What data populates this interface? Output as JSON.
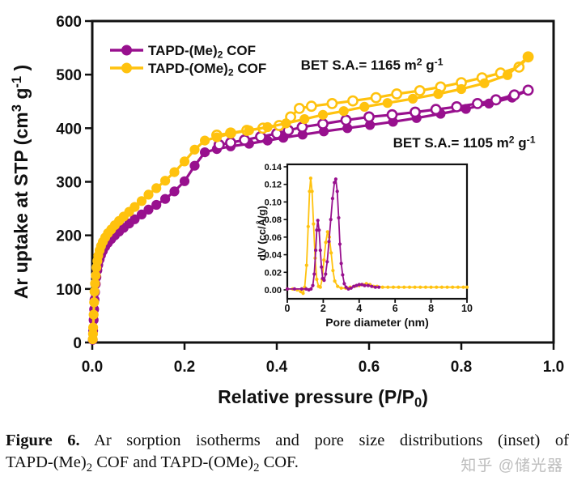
{
  "watermark": {
    "text": "知乎 @储光器"
  },
  "caption": {
    "label": "Figure 6.",
    "line1_rest": " Ar sorption isotherms and pore size distributions (inset) of",
    "line2_parts": [
      {
        "t": "TAPD-(Me)"
      },
      {
        "t": "2",
        "sub": true
      },
      {
        "t": " COF and TAPD-(OMe)"
      },
      {
        "t": "2",
        "sub": true
      },
      {
        "t": " COF."
      }
    ],
    "full_text": "Figure 6. Ar sorption isotherms and pore size distributions (inset) of TAPD-(Me)2 COF and TAPD-(OMe)2 COF."
  },
  "colors": {
    "me": "#98108E",
    "ome": "#FFC20E",
    "frame": "#111111",
    "text": "#111111",
    "watermark": "#bdbdbd"
  },
  "chart_data": [
    {
      "type": "scatter-line",
      "title": "Ar sorption isotherms",
      "xlabel": "Relative pressure (P/P0)",
      "xlabel_parts": [
        {
          "t": "Relative pressure (P/P"
        },
        {
          "t": "0",
          "sub": true
        },
        {
          "t": ")"
        }
      ],
      "ylabel": "Ar uptake at STP (cm3 g-1)",
      "ylabel_parts": [
        {
          "t": "Ar uptake at STP (cm"
        },
        {
          "t": "3",
          "sup": true
        },
        {
          "t": " g"
        },
        {
          "t": "-1",
          "sup": true
        },
        {
          "t": " )"
        }
      ],
      "xlim": [
        0,
        1
      ],
      "ylim": [
        0,
        600
      ],
      "xtick_labels": [
        "0.0",
        "0.2",
        "0.4",
        "0.6",
        "0.8",
        "1.0"
      ],
      "ytick_labels": [
        "0",
        "100",
        "200",
        "300",
        "400",
        "500",
        "600"
      ],
      "grid": false,
      "legend": {
        "position": "top-left",
        "entries": [
          {
            "label": "TAPD-(Me)2 COF",
            "color_key": "me",
            "label_parts": [
              {
                "t": "TAPD-(Me)"
              },
              {
                "t": "2",
                "sub": true
              },
              {
                "t": " COF"
              }
            ]
          },
          {
            "label": "TAPD-(OMe)2 COF",
            "color_key": "ome",
            "label_parts": [
              {
                "t": "TAPD-(OMe)"
              },
              {
                "t": "2",
                "sub": true
              },
              {
                "t": " COF"
              }
            ]
          }
        ]
      },
      "annotations": [
        {
          "text": "BET S.A.= 1165 m2 g-1",
          "x": 0.452,
          "y": 509,
          "parts": [
            {
              "t": "BET S.A.= 1165 m"
            },
            {
              "t": "2",
              "sup": true
            },
            {
              "t": " g"
            },
            {
              "t": "-1",
              "sup": true
            }
          ]
        },
        {
          "text": "BET S.A.= 1105 m2 g-1",
          "x": 0.652,
          "y": 364,
          "parts": [
            {
              "t": "BET S.A.= 1105 m"
            },
            {
              "t": "2",
              "sup": true
            },
            {
              "t": " g"
            },
            {
              "t": "-1",
              "sup": true
            }
          ]
        }
      ],
      "series": [
        {
          "name": "TAPD-(Me)2 COF",
          "branch": "adsorption",
          "marker": "filled",
          "color_key": "me",
          "points": [
            [
              0.001,
              5
            ],
            [
              0.002,
              22
            ],
            [
              0.003,
              42
            ],
            [
              0.004,
              62
            ],
            [
              0.005,
              80
            ],
            [
              0.006,
              94
            ],
            [
              0.0075,
              109
            ],
            [
              0.009,
              122
            ],
            [
              0.011,
              135
            ],
            [
              0.013,
              145
            ],
            [
              0.016,
              155
            ],
            [
              0.019,
              163
            ],
            [
              0.023,
              171
            ],
            [
              0.028,
              179
            ],
            [
              0.034,
              186
            ],
            [
              0.041,
              193
            ],
            [
              0.049,
              200
            ],
            [
              0.058,
              207
            ],
            [
              0.068,
              214
            ],
            [
              0.08,
              222
            ],
            [
              0.092,
              230
            ],
            [
              0.107,
              239
            ],
            [
              0.122,
              248
            ],
            [
              0.139,
              257
            ],
            [
              0.158,
              268
            ],
            [
              0.178,
              282
            ],
            [
              0.2,
              301
            ],
            [
              0.222,
              330
            ],
            [
              0.244,
              355
            ],
            [
              0.27,
              361
            ],
            [
              0.3,
              366
            ],
            [
              0.34,
              371
            ],
            [
              0.38,
              377
            ],
            [
              0.414,
              382
            ],
            [
              0.456,
              388
            ],
            [
              0.502,
              394
            ],
            [
              0.553,
              400
            ],
            [
              0.602,
              406
            ],
            [
              0.652,
              412
            ],
            [
              0.703,
              419
            ],
            [
              0.755,
              427
            ],
            [
              0.81,
              436
            ],
            [
              0.86,
              446
            ],
            [
              0.91,
              457
            ],
            [
              0.945,
              471
            ]
          ]
        },
        {
          "name": "TAPD-(Me)2 COF",
          "branch": "desorption",
          "marker": "open",
          "color_key": "me",
          "points": [
            [
              0.945,
              471
            ],
            [
              0.915,
              462
            ],
            [
              0.875,
              453
            ],
            [
              0.835,
              446
            ],
            [
              0.79,
              440
            ],
            [
              0.745,
              435
            ],
            [
              0.7,
              430
            ],
            [
              0.65,
              425
            ],
            [
              0.6,
              421
            ],
            [
              0.55,
              415
            ],
            [
              0.5,
              408
            ],
            [
              0.455,
              402
            ],
            [
              0.425,
              396
            ],
            [
              0.4,
              390
            ],
            [
              0.365,
              384
            ],
            [
              0.33,
              378
            ],
            [
              0.3,
              373
            ],
            [
              0.275,
              369
            ]
          ]
        },
        {
          "name": "TAPD-(OMe)2 COF",
          "branch": "desorption",
          "marker": "open",
          "color_key": "ome",
          "points": [
            [
              0.945,
              533
            ],
            [
              0.925,
              514
            ],
            [
              0.885,
              503
            ],
            [
              0.845,
              494
            ],
            [
              0.8,
              485
            ],
            [
              0.755,
              477
            ],
            [
              0.71,
              470
            ],
            [
              0.66,
              464
            ],
            [
              0.615,
              457
            ],
            [
              0.565,
              451
            ],
            [
              0.52,
              446
            ],
            [
              0.475,
              441
            ],
            [
              0.449,
              437
            ],
            [
              0.43,
              421
            ],
            [
              0.405,
              405
            ],
            [
              0.37,
              400
            ],
            [
              0.335,
              396
            ],
            [
              0.3,
              391
            ],
            [
              0.27,
              387
            ]
          ]
        },
        {
          "name": "TAPD-(OMe)2 COF",
          "branch": "adsorption",
          "marker": "filled",
          "color_key": "ome",
          "points": [
            [
              0.001,
              6
            ],
            [
              0.0015,
              16
            ],
            [
              0.002,
              28
            ],
            [
              0.003,
              52
            ],
            [
              0.004,
              75
            ],
            [
              0.005,
              95
            ],
            [
              0.006,
              110
            ],
            [
              0.0075,
              125
            ],
            [
              0.009,
              140
            ],
            [
              0.011,
              152
            ],
            [
              0.013,
              162
            ],
            [
              0.016,
              172
            ],
            [
              0.019,
              180
            ],
            [
              0.023,
              188
            ],
            [
              0.028,
              196
            ],
            [
              0.034,
              204
            ],
            [
              0.041,
              211
            ],
            [
              0.049,
              219
            ],
            [
              0.058,
              227
            ],
            [
              0.068,
              235
            ],
            [
              0.08,
              244
            ],
            [
              0.092,
              253
            ],
            [
              0.107,
              264
            ],
            [
              0.122,
              276
            ],
            [
              0.139,
              288
            ],
            [
              0.158,
              302
            ],
            [
              0.178,
              318
            ],
            [
              0.2,
              338
            ],
            [
              0.222,
              360
            ],
            [
              0.244,
              377
            ],
            [
              0.27,
              383
            ],
            [
              0.3,
              390
            ],
            [
              0.34,
              396
            ],
            [
              0.38,
              402
            ],
            [
              0.42,
              409
            ],
            [
              0.46,
              417
            ],
            [
              0.5,
              425
            ],
            [
              0.545,
              432
            ],
            [
              0.59,
              440
            ],
            [
              0.64,
              447
            ],
            [
              0.695,
              455
            ],
            [
              0.75,
              464
            ],
            [
              0.8,
              473
            ],
            [
              0.85,
              484
            ],
            [
              0.9,
              499
            ],
            [
              0.945,
              533
            ]
          ]
        }
      ]
    },
    {
      "type": "line",
      "title": "Pore size distributions (inset)",
      "xlabel": "Pore diameter (nm)",
      "ylabel": "dV (cc/Å/g)",
      "xlim": [
        0,
        10
      ],
      "ylim": [
        0,
        0.14
      ],
      "xtick_labels": [
        "0",
        "2",
        "4",
        "6",
        "8",
        "10"
      ],
      "ytick_labels": [
        "0.00",
        "0.02",
        "0.04",
        "0.06",
        "0.08",
        "0.10",
        "0.12",
        "0.14"
      ],
      "grid": false,
      "series": [
        {
          "name": "TAPD-(OMe)2 COF",
          "color_key": "ome",
          "points": [
            [
              0,
              0.001
            ],
            [
              0.3,
              0.001
            ],
            [
              0.55,
              0
            ],
            [
              0.75,
              -0.002
            ],
            [
              0.88,
              -0.004
            ],
            [
              0.97,
              0.003
            ],
            [
              1.07,
              0.028
            ],
            [
              1.16,
              0.072
            ],
            [
              1.24,
              0.112
            ],
            [
              1.3,
              0.127
            ],
            [
              1.38,
              0.112
            ],
            [
              1.46,
              0.075
            ],
            [
              1.55,
              0.036
            ],
            [
              1.64,
              0.012
            ],
            [
              1.74,
              0.004
            ],
            [
              1.84,
              0.003
            ],
            [
              1.94,
              0.012
            ],
            [
              2.04,
              0.034
            ],
            [
              2.14,
              0.054
            ],
            [
              2.24,
              0.066
            ],
            [
              2.34,
              0.06
            ],
            [
              2.44,
              0.042
            ],
            [
              2.54,
              0.022
            ],
            [
              2.64,
              0.01
            ],
            [
              2.8,
              0.004
            ],
            [
              3,
              0.002
            ],
            [
              3.25,
              0.002
            ],
            [
              3.5,
              0.003
            ],
            [
              3.75,
              0.004
            ],
            [
              4,
              0.005
            ],
            [
              4.2,
              0.006
            ],
            [
              4.4,
              0.007
            ],
            [
              4.6,
              0.006
            ],
            [
              4.8,
              0.004
            ],
            [
              5,
              0.004
            ],
            [
              5.3,
              0.003
            ],
            [
              5.6,
              0.003
            ],
            [
              5.9,
              0.003
            ],
            [
              6.2,
              0.003
            ],
            [
              6.5,
              0.003
            ],
            [
              6.8,
              0.003
            ],
            [
              7.1,
              0.003
            ],
            [
              7.4,
              0.003
            ],
            [
              7.7,
              0.003
            ],
            [
              8,
              0.003
            ],
            [
              8.3,
              0.003
            ],
            [
              8.6,
              0.003
            ],
            [
              8.9,
              0.003
            ],
            [
              9.2,
              0.003
            ],
            [
              9.5,
              0.003
            ],
            [
              9.8,
              0.003
            ],
            [
              10,
              0.003
            ]
          ]
        },
        {
          "name": "TAPD-(Me)2 COF",
          "color_key": "me",
          "points": [
            [
              0,
              0.001
            ],
            [
              0.4,
              0.001
            ],
            [
              0.8,
              0.001
            ],
            [
              1.05,
              0.001
            ],
            [
              1.2,
              0
            ],
            [
              1.32,
              0.001
            ],
            [
              1.42,
              0.005
            ],
            [
              1.5,
              0.018
            ],
            [
              1.58,
              0.045
            ],
            [
              1.64,
              0.068
            ],
            [
              1.7,
              0.079
            ],
            [
              1.77,
              0.068
            ],
            [
              1.84,
              0.045
            ],
            [
              1.9,
              0.026
            ],
            [
              1.97,
              0.013
            ],
            [
              2.05,
              0.011
            ],
            [
              2.13,
              0.018
            ],
            [
              2.22,
              0.032
            ],
            [
              2.32,
              0.055
            ],
            [
              2.42,
              0.08
            ],
            [
              2.52,
              0.104
            ],
            [
              2.62,
              0.122
            ],
            [
              2.7,
              0.126
            ],
            [
              2.78,
              0.112
            ],
            [
              2.86,
              0.082
            ],
            [
              2.93,
              0.052
            ],
            [
              3,
              0.03
            ],
            [
              3.08,
              0.017
            ],
            [
              3.17,
              0.007
            ],
            [
              3.27,
              0.003
            ],
            [
              3.4,
              0.001
            ],
            [
              3.55,
              0.002
            ],
            [
              3.7,
              0.004
            ],
            [
              3.85,
              0.005
            ],
            [
              4,
              0.006
            ],
            [
              4.15,
              0.006
            ],
            [
              4.3,
              0.005
            ],
            [
              4.5,
              0.005
            ],
            [
              4.7,
              0.004
            ],
            [
              4.9,
              0.003
            ],
            [
              5.1,
              0.003
            ]
          ]
        }
      ]
    }
  ]
}
